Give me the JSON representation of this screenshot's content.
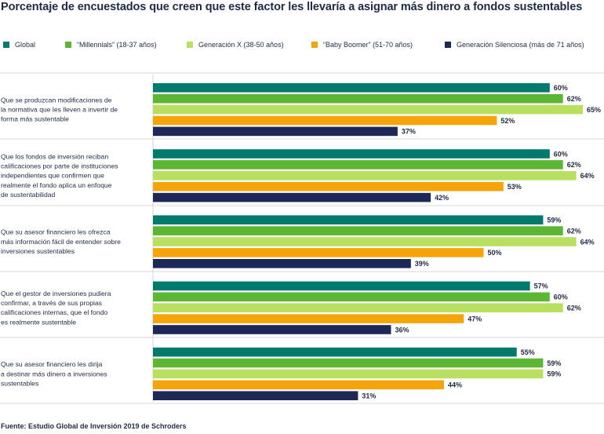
{
  "chart_data": {
    "type": "bar",
    "orientation": "horizontal",
    "title": "Porcentaje de encuestados que creen que este factor les llevaría a asignar más dinero a fondos sustentables",
    "categories": [
      "Que se produzcan modificaciones de la normativa que les lleven a invertir de forma más sustentable",
      "Que los fondos de inversión reciban calificaciones por parte de instituciones independientes que confirmen que realmente el fondo aplica un enfoque de sustentabilidad",
      "Que su asesor financiero les ofrezca más información fácil de entender sobre inversiones sustentables",
      "Que el gestor de inversiones pudiera confirmar, a través de sus propias calificaciones internas, que el fondo es realmente sustentable",
      "Que su asesor financiero les dirija a destinar más dinero a inversiones sustentables"
    ],
    "category_lines": [
      [
        "Que se produzcan modificaciones de",
        "la normativa que les lleven a invertir de",
        "forma más sustentable"
      ],
      [
        "Que los fondos de inversión reciban",
        "calificaciones por parte de instituciones",
        "independientes que confirmen que",
        "realmente el fondo aplica un enfoque",
        "de sustentabilidad"
      ],
      [
        "Que su asesor financiero les ofrezca",
        "más información fácil de entender sobre",
        "inversiones sustentables"
      ],
      [
        "Que el gestor de inversiones pudiera",
        "confirmar, a través de sus propias",
        "calificaciones internas, que el fondo",
        "es realmente sustentable"
      ],
      [
        "Que su asesor financiero les dirija",
        "a destinar más dinero a inversiones",
        "sustentables"
      ]
    ],
    "series": [
      {
        "name": "Global",
        "color": "#007a6d",
        "values": [
          60,
          60,
          59,
          57,
          55
        ]
      },
      {
        "name": "“Millennials” (18-37 años)",
        "color": "#5db534",
        "values": [
          62,
          62,
          62,
          60,
          59
        ]
      },
      {
        "name": "Generación X (38-50 años)",
        "color": "#b8df5f",
        "values": [
          65,
          64,
          64,
          62,
          59
        ]
      },
      {
        "name": "“Baby Boomer” (51-70 años)",
        "color": "#f5a50a",
        "values": [
          52,
          53,
          50,
          47,
          44
        ]
      },
      {
        "name": "Generación Silenciosa (más de 71 años)",
        "color": "#1d2857",
        "values": [
          37,
          42,
          39,
          36,
          31
        ]
      }
    ],
    "value_suffix": "%",
    "xlim": [
      0,
      65
    ],
    "legend_position": "top",
    "grid": false
  },
  "footer": "Fuente: Estudio Global de Inversión 2019 de Schroders"
}
